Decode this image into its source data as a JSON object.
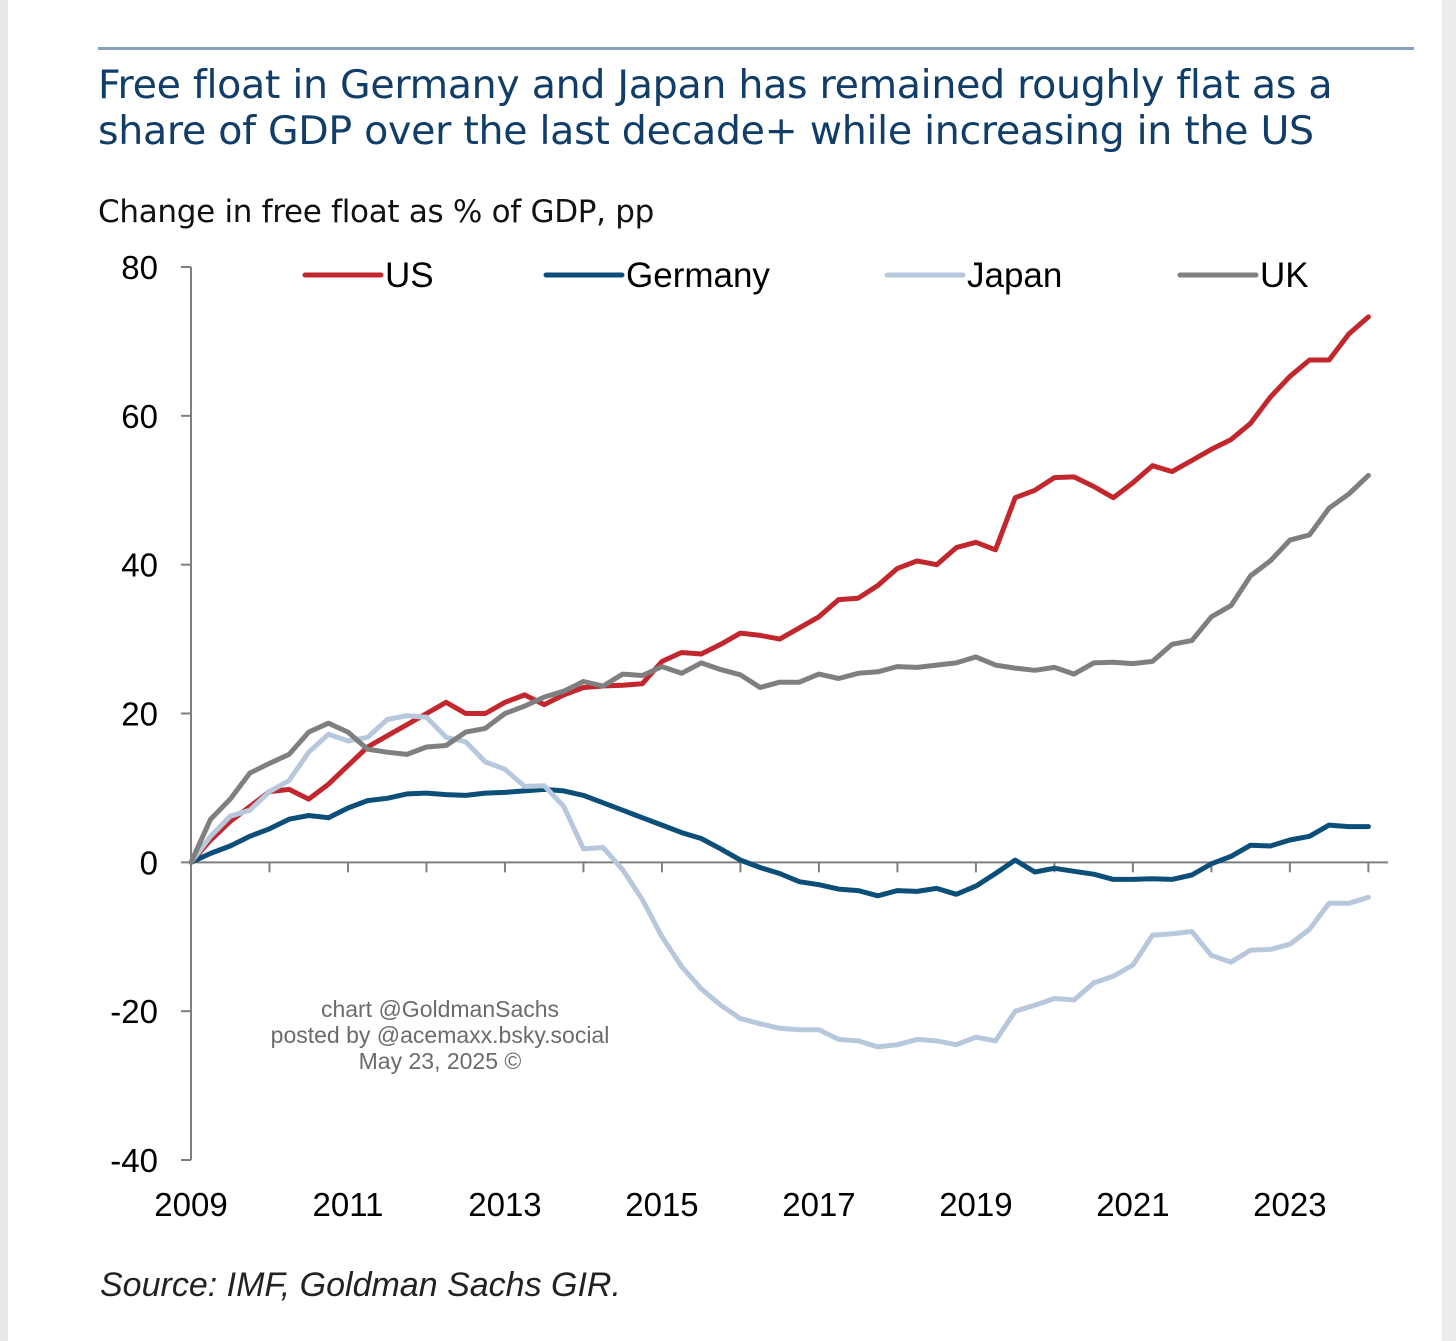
{
  "title": "Free float in Germany and Japan has remained roughly flat as a share of GDP over the last decade+ while increasing in the US",
  "subtitle": "Change in free float as % of GDP, pp",
  "source": "Source: IMF, Goldman Sachs GIR.",
  "watermark": {
    "line1": "chart @GoldmanSachs",
    "line2": "posted by @acemaxx.bsky.social",
    "line3": "May 23, 2025 ©"
  },
  "chart_data": {
    "type": "line",
    "title": "Free float in Germany and Japan has remained roughly flat as a share of GDP over the last decade+ while increasing in the US",
    "subtitle": "Change in free float as % of GDP, pp",
    "ylabel": "",
    "xlabel": "",
    "xlim": [
      2009,
      2024.25
    ],
    "ylim": [
      -40,
      80
    ],
    "x_ticks": [
      "2009",
      "2011",
      "2013",
      "2015",
      "2017",
      "2019",
      "2021",
      "2023"
    ],
    "y_ticks": [
      "80",
      "60",
      "40",
      "20",
      "0",
      "-20",
      "-40"
    ],
    "grid": false,
    "legend_position": "top",
    "series": [
      {
        "name": "US",
        "color": "#c1272d",
        "points": [
          [
            2009,
            0
          ],
          [
            2009.25,
            3
          ],
          [
            2009.5,
            5.5
          ],
          [
            2009.75,
            7.5
          ],
          [
            2010,
            9.5
          ],
          [
            2010.25,
            9.8
          ],
          [
            2010.5,
            8.5
          ],
          [
            2010.75,
            10.5
          ],
          [
            2011,
            13
          ],
          [
            2011.25,
            15.5
          ],
          [
            2011.5,
            17
          ],
          [
            2011.75,
            18.5
          ],
          [
            2012,
            20
          ],
          [
            2012.25,
            21.5
          ],
          [
            2012.5,
            20
          ],
          [
            2012.75,
            20
          ],
          [
            2013,
            21.5
          ],
          [
            2013.25,
            22.5
          ],
          [
            2013.5,
            21.2
          ],
          [
            2013.75,
            22.5
          ],
          [
            2014,
            23.5
          ],
          [
            2014.25,
            23.7
          ],
          [
            2014.5,
            23.8
          ],
          [
            2014.75,
            24
          ],
          [
            2015,
            27
          ],
          [
            2015.25,
            28.2
          ],
          [
            2015.5,
            28
          ],
          [
            2015.75,
            29.3
          ],
          [
            2016,
            30.8
          ],
          [
            2016.25,
            30.5
          ],
          [
            2016.5,
            30
          ],
          [
            2016.75,
            31.5
          ],
          [
            2017,
            33
          ],
          [
            2017.25,
            35.3
          ],
          [
            2017.5,
            35.5
          ],
          [
            2017.75,
            37.2
          ],
          [
            2018,
            39.5
          ],
          [
            2018.25,
            40.5
          ],
          [
            2018.5,
            40
          ],
          [
            2018.75,
            42.3
          ],
          [
            2019,
            43
          ],
          [
            2019.25,
            42
          ],
          [
            2019.5,
            49
          ],
          [
            2019.75,
            50
          ],
          [
            2020,
            51.7
          ],
          [
            2020.25,
            51.8
          ],
          [
            2020.5,
            50.5
          ],
          [
            2020.75,
            49
          ],
          [
            2021,
            51
          ],
          [
            2021.25,
            53.3
          ],
          [
            2021.5,
            52.5
          ],
          [
            2021.75,
            54
          ],
          [
            2022,
            55.5
          ],
          [
            2022.25,
            56.8
          ],
          [
            2022.5,
            59
          ],
          [
            2022.75,
            62.5
          ],
          [
            2023,
            65.3
          ],
          [
            2023.25,
            67.5
          ],
          [
            2023.5,
            67.5
          ],
          [
            2023.75,
            71
          ],
          [
            2024,
            73.3
          ]
        ]
      },
      {
        "name": "Germany",
        "color": "#0b4f79",
        "points": [
          [
            2009,
            0
          ],
          [
            2009.25,
            1.2
          ],
          [
            2009.5,
            2.2
          ],
          [
            2009.75,
            3.5
          ],
          [
            2010,
            4.5
          ],
          [
            2010.25,
            5.8
          ],
          [
            2010.5,
            6.3
          ],
          [
            2010.75,
            6
          ],
          [
            2011,
            7.3
          ],
          [
            2011.25,
            8.3
          ],
          [
            2011.5,
            8.6
          ],
          [
            2011.75,
            9.2
          ],
          [
            2012,
            9.3
          ],
          [
            2012.25,
            9.1
          ],
          [
            2012.5,
            9
          ],
          [
            2012.75,
            9.3
          ],
          [
            2013,
            9.4
          ],
          [
            2013.25,
            9.6
          ],
          [
            2013.5,
            9.8
          ],
          [
            2013.75,
            9.6
          ],
          [
            2014,
            9
          ],
          [
            2014.25,
            8
          ],
          [
            2014.5,
            7
          ],
          [
            2014.75,
            6
          ],
          [
            2015,
            5
          ],
          [
            2015.25,
            4
          ],
          [
            2015.5,
            3.2
          ],
          [
            2015.75,
            1.8
          ],
          [
            2016,
            0.3
          ],
          [
            2016.25,
            -0.7
          ],
          [
            2016.5,
            -1.5
          ],
          [
            2016.75,
            -2.6
          ],
          [
            2017,
            -3
          ],
          [
            2017.25,
            -3.6
          ],
          [
            2017.5,
            -3.8
          ],
          [
            2017.75,
            -4.5
          ],
          [
            2018,
            -3.8
          ],
          [
            2018.25,
            -3.9
          ],
          [
            2018.5,
            -3.5
          ],
          [
            2018.75,
            -4.3
          ],
          [
            2019,
            -3.2
          ],
          [
            2019.25,
            -1.5
          ],
          [
            2019.5,
            0.3
          ],
          [
            2019.75,
            -1.3
          ],
          [
            2020,
            -0.8
          ],
          [
            2020.25,
            -1.2
          ],
          [
            2020.5,
            -1.6
          ],
          [
            2020.75,
            -2.3
          ],
          [
            2021,
            -2.3
          ],
          [
            2021.25,
            -2.2
          ],
          [
            2021.5,
            -2.3
          ],
          [
            2021.75,
            -1.7
          ],
          [
            2022,
            -0.2
          ],
          [
            2022.25,
            0.8
          ],
          [
            2022.5,
            2.3
          ],
          [
            2022.75,
            2.2
          ],
          [
            2023,
            3
          ],
          [
            2023.25,
            3.5
          ],
          [
            2023.5,
            5
          ],
          [
            2023.75,
            4.8
          ],
          [
            2024,
            4.8
          ]
        ]
      },
      {
        "name": "Japan",
        "color": "#b7c8dd",
        "points": [
          [
            2009,
            0
          ],
          [
            2009.25,
            3.5
          ],
          [
            2009.5,
            6.2
          ],
          [
            2009.75,
            7
          ],
          [
            2010,
            9.5
          ],
          [
            2010.25,
            11
          ],
          [
            2010.5,
            14.8
          ],
          [
            2010.75,
            17.2
          ],
          [
            2011,
            16.3
          ],
          [
            2011.25,
            16.8
          ],
          [
            2011.5,
            19.2
          ],
          [
            2011.75,
            19.7
          ],
          [
            2012,
            19.5
          ],
          [
            2012.25,
            16.8
          ],
          [
            2012.5,
            16.2
          ],
          [
            2012.75,
            13.5
          ],
          [
            2013,
            12.5
          ],
          [
            2013.25,
            10.2
          ],
          [
            2013.5,
            10.3
          ],
          [
            2013.75,
            7.5
          ],
          [
            2014,
            1.8
          ],
          [
            2014.25,
            2
          ],
          [
            2014.5,
            -1
          ],
          [
            2014.75,
            -5
          ],
          [
            2015,
            -10
          ],
          [
            2015.25,
            -14
          ],
          [
            2015.5,
            -17
          ],
          [
            2015.75,
            -19.2
          ],
          [
            2016,
            -21
          ],
          [
            2016.25,
            -21.7
          ],
          [
            2016.5,
            -22.3
          ],
          [
            2016.75,
            -22.5
          ],
          [
            2017,
            -22.5
          ],
          [
            2017.25,
            -23.8
          ],
          [
            2017.5,
            -24
          ],
          [
            2017.75,
            -24.8
          ],
          [
            2018,
            -24.5
          ],
          [
            2018.25,
            -23.8
          ],
          [
            2018.5,
            -24
          ],
          [
            2018.75,
            -24.5
          ],
          [
            2019,
            -23.5
          ],
          [
            2019.25,
            -24
          ],
          [
            2019.5,
            -20
          ],
          [
            2019.75,
            -19.2
          ],
          [
            2020,
            -18.3
          ],
          [
            2020.25,
            -18.5
          ],
          [
            2020.5,
            -16.2
          ],
          [
            2020.75,
            -15.3
          ],
          [
            2021,
            -13.8
          ],
          [
            2021.25,
            -9.8
          ],
          [
            2021.5,
            -9.6
          ],
          [
            2021.75,
            -9.3
          ],
          [
            2022,
            -12.5
          ],
          [
            2022.25,
            -13.4
          ],
          [
            2022.5,
            -11.8
          ],
          [
            2022.75,
            -11.7
          ],
          [
            2023,
            -11
          ],
          [
            2023.25,
            -9
          ],
          [
            2023.5,
            -5.5
          ],
          [
            2023.75,
            -5.5
          ],
          [
            2024,
            -4.7
          ]
        ]
      },
      {
        "name": "UK",
        "color": "#7f7f7f",
        "points": [
          [
            2009,
            0
          ],
          [
            2009.25,
            5.8
          ],
          [
            2009.5,
            8.5
          ],
          [
            2009.75,
            12
          ],
          [
            2010,
            13.3
          ],
          [
            2010.25,
            14.5
          ],
          [
            2010.5,
            17.5
          ],
          [
            2010.75,
            18.7
          ],
          [
            2011,
            17.5
          ],
          [
            2011.25,
            15.2
          ],
          [
            2011.5,
            14.8
          ],
          [
            2011.75,
            14.5
          ],
          [
            2012,
            15.5
          ],
          [
            2012.25,
            15.7
          ],
          [
            2012.5,
            17.5
          ],
          [
            2012.75,
            18
          ],
          [
            2013,
            20
          ],
          [
            2013.25,
            21
          ],
          [
            2013.5,
            22.2
          ],
          [
            2013.75,
            23
          ],
          [
            2014,
            24.3
          ],
          [
            2014.25,
            23.7
          ],
          [
            2014.5,
            25.3
          ],
          [
            2014.75,
            25.1
          ],
          [
            2015,
            26.3
          ],
          [
            2015.25,
            25.4
          ],
          [
            2015.5,
            26.8
          ],
          [
            2015.75,
            25.9
          ],
          [
            2016,
            25.2
          ],
          [
            2016.25,
            23.5
          ],
          [
            2016.5,
            24.2
          ],
          [
            2016.75,
            24.2
          ],
          [
            2017,
            25.3
          ],
          [
            2017.25,
            24.7
          ],
          [
            2017.5,
            25.4
          ],
          [
            2017.75,
            25.6
          ],
          [
            2018,
            26.3
          ],
          [
            2018.25,
            26.2
          ],
          [
            2018.5,
            26.5
          ],
          [
            2018.75,
            26.8
          ],
          [
            2019,
            27.6
          ],
          [
            2019.25,
            26.5
          ],
          [
            2019.5,
            26.1
          ],
          [
            2019.75,
            25.8
          ],
          [
            2020,
            26.2
          ],
          [
            2020.25,
            25.3
          ],
          [
            2020.5,
            26.8
          ],
          [
            2020.75,
            26.9
          ],
          [
            2021,
            26.7
          ],
          [
            2021.25,
            27
          ],
          [
            2021.5,
            29.3
          ],
          [
            2021.75,
            29.8
          ],
          [
            2022,
            33
          ],
          [
            2022.25,
            34.5
          ],
          [
            2022.5,
            38.5
          ],
          [
            2022.75,
            40.5
          ],
          [
            2023,
            43.3
          ],
          [
            2023.25,
            44
          ],
          [
            2023.5,
            47.6
          ],
          [
            2023.75,
            49.5
          ],
          [
            2024,
            52
          ]
        ]
      }
    ]
  }
}
